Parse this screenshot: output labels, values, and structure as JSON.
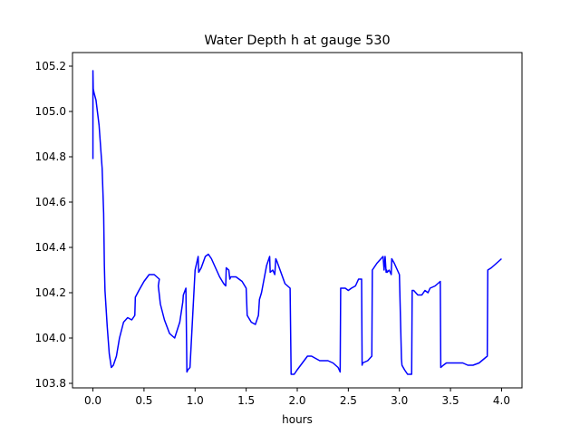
{
  "chart_data": {
    "type": "line",
    "title": "Water Depth h at gauge 530",
    "xlabel": "hours",
    "ylabel": "",
    "xlim": [
      -0.2,
      4.2
    ],
    "ylim": [
      103.78,
      105.26
    ],
    "xticks": [
      0.0,
      0.5,
      1.0,
      1.5,
      2.0,
      2.5,
      3.0,
      3.5,
      4.0
    ],
    "xtick_labels": [
      "0.0",
      "0.5",
      "1.0",
      "1.5",
      "2.0",
      "2.5",
      "3.0",
      "3.5",
      "4.0"
    ],
    "yticks": [
      103.8,
      104.0,
      104.2,
      104.4,
      104.6,
      104.8,
      105.0,
      105.2
    ],
    "ytick_labels": [
      "103.8",
      "104.0",
      "104.2",
      "104.4",
      "104.6",
      "104.8",
      "105.0",
      "105.2"
    ],
    "grid": false,
    "series": [
      {
        "color": "#0000ff",
        "x": [
          0.0,
          0.0,
          0.003,
          0.012,
          0.03,
          0.06,
          0.09,
          0.105,
          0.112,
          0.118,
          0.14,
          0.16,
          0.18,
          0.2,
          0.23,
          0.26,
          0.3,
          0.34,
          0.38,
          0.41,
          0.415,
          0.45,
          0.5,
          0.55,
          0.6,
          0.65,
          0.64,
          0.66,
          0.7,
          0.75,
          0.8,
          0.85,
          0.88,
          0.885,
          0.91,
          0.92,
          0.93,
          0.95,
          1.0,
          1.03,
          1.035,
          1.06,
          1.1,
          1.13,
          1.16,
          1.2,
          1.24,
          1.28,
          1.3,
          1.305,
          1.33,
          1.34,
          1.35,
          1.4,
          1.43,
          1.46,
          1.5,
          1.51,
          1.55,
          1.59,
          1.62,
          1.63,
          1.65,
          1.7,
          1.73,
          1.735,
          1.76,
          1.78,
          1.79,
          1.8,
          1.84,
          1.88,
          1.93,
          1.94,
          1.945,
          1.97,
          2.0,
          2.05,
          2.1,
          2.14,
          2.18,
          2.22,
          2.3,
          2.35,
          2.4,
          2.42,
          2.425,
          2.44,
          2.47,
          2.5,
          2.53,
          2.57,
          2.6,
          2.63,
          2.635,
          2.64,
          2.69,
          2.73,
          2.735,
          2.78,
          2.84,
          2.85,
          2.86,
          2.87,
          2.875,
          2.88,
          2.9,
          2.92,
          2.925,
          2.95,
          3.0,
          3.02,
          3.025,
          3.05,
          3.08,
          3.12,
          3.125,
          3.14,
          3.18,
          3.22,
          3.25,
          3.28,
          3.3,
          3.35,
          3.4,
          3.405,
          3.43,
          3.46,
          3.5,
          3.55,
          3.62,
          3.67,
          3.72,
          3.78,
          3.86,
          3.865,
          3.9,
          3.95,
          4.0
        ],
        "values": [
          104.79,
          105.18,
          105.1,
          105.08,
          105.05,
          104.94,
          104.75,
          104.55,
          104.32,
          104.21,
          104.05,
          103.93,
          103.87,
          103.88,
          103.92,
          104.0,
          104.07,
          104.09,
          104.08,
          104.1,
          104.18,
          104.21,
          104.25,
          104.28,
          104.28,
          104.26,
          104.23,
          104.15,
          104.08,
          104.02,
          104.0,
          104.07,
          104.16,
          104.19,
          104.22,
          103.85,
          103.86,
          103.87,
          104.3,
          104.36,
          104.29,
          104.31,
          104.36,
          104.37,
          104.35,
          104.31,
          104.27,
          104.24,
          104.23,
          104.31,
          104.3,
          104.26,
          104.27,
          104.27,
          104.26,
          104.25,
          104.22,
          104.1,
          104.07,
          104.06,
          104.1,
          104.17,
          104.2,
          104.32,
          104.36,
          104.29,
          104.3,
          104.28,
          104.35,
          104.34,
          104.29,
          104.24,
          104.22,
          103.84,
          103.84,
          103.84,
          103.86,
          103.89,
          103.92,
          103.92,
          103.91,
          103.9,
          103.9,
          103.89,
          103.87,
          103.85,
          104.22,
          104.22,
          104.22,
          104.21,
          104.22,
          104.23,
          104.26,
          104.26,
          103.88,
          103.89,
          103.9,
          103.92,
          104.3,
          104.33,
          104.36,
          104.3,
          104.36,
          104.29,
          104.3,
          104.29,
          104.3,
          104.28,
          104.35,
          104.33,
          104.28,
          103.91,
          103.88,
          103.86,
          103.84,
          103.84,
          104.21,
          104.21,
          104.19,
          104.19,
          104.21,
          104.2,
          104.22,
          104.23,
          104.25,
          103.87,
          103.88,
          103.89,
          103.89,
          103.89,
          103.89,
          103.88,
          103.88,
          103.89,
          103.92,
          104.3,
          104.31,
          104.33,
          104.35
        ]
      }
    ]
  }
}
